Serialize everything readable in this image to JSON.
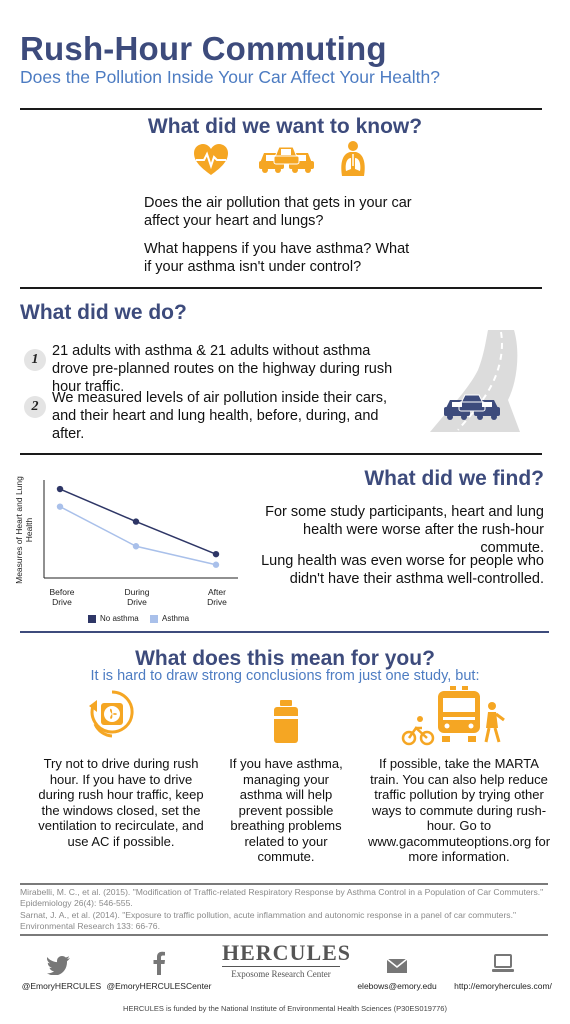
{
  "header": {
    "title": "Rush-Hour Commuting",
    "subtitle": "Does the Pollution Inside Your Car Affect Your Health?"
  },
  "section_know": {
    "title": "What did we want to know?",
    "q1": "Does the air pollution that gets in your car affect your heart and lungs?",
    "q2": "What happens if you have asthma? What if your asthma isn't under control?"
  },
  "section_do": {
    "title": "What did we do?",
    "steps": [
      {
        "num": "1",
        "text": "21 adults with asthma & 21 adults without asthma drove pre-planned routes on the highway during rush hour traffic."
      },
      {
        "num": "2",
        "text": "We measured levels of air pollution inside their cars, and their heart and lung health, before, during, and after."
      }
    ]
  },
  "section_find": {
    "title": "What did we find?",
    "p1": "For some study participants, heart and lung health were worse after the rush-hour commute.",
    "p2": "Lung health was even worse for people who didn't have their asthma well-controlled."
  },
  "chart_data": {
    "type": "line",
    "ylabel": "Measures of Heart and Lung Health",
    "categories": [
      "Before Drive",
      "During Drive",
      "After Drive"
    ],
    "series": [
      {
        "name": "No asthma",
        "values": [
          0.92,
          0.55,
          0.18
        ],
        "color": "#2e3666"
      },
      {
        "name": "Asthma",
        "values": [
          0.72,
          0.27,
          0.06
        ],
        "color": "#a9c0ea"
      }
    ],
    "ylim": [
      0,
      1
    ],
    "grid": false,
    "legend": "bottom"
  },
  "section_mean": {
    "title": "What does this mean for you?",
    "subtitle": "It is hard to draw strong conclusions from just one study, but:",
    "tips": [
      "Try not to drive during rush hour. If you have to drive during rush hour traffic, keep the windows closed, set the ventilation to recirculate, and use AC if possible.",
      "If you have asthma, managing your asthma will help prevent possible breathing problems related to your commute.",
      "If possible, take the MARTA train. You can also help reduce traffic pollution by trying other ways to commute during rush-hour. Go to www.gacommuteoptions.org for more information."
    ]
  },
  "references": [
    "Mirabelli, M. C., et al. (2015). \"Modification of Traffic-related Respiratory Response by Asthma Control in a Population of Car Commuters.\" Epidemiology 26(4): 546-555.",
    "Sarnat, J. A., et al. (2014). \"Exposure to traffic pollution, acute inflammation and autonomic response in a panel of car commuters.\" Environmental Research 133: 66-76."
  ],
  "footer": {
    "twitter": "@EmoryHERCULES",
    "facebook": "@EmoryHERCULESCenter",
    "logo_title": "HERCULES",
    "logo_sub": "Exposome Research Center",
    "email": "elebows@emory.edu",
    "website": "http://emoryhercules.com/",
    "funding": "HERCULES is funded by the National Institute of Environmental Health Sciences (P30ES019776)"
  },
  "colors": {
    "navy": "#3d4b7c",
    "orange": "#f5a623",
    "blue_subtitle": "#4d7cc2"
  }
}
